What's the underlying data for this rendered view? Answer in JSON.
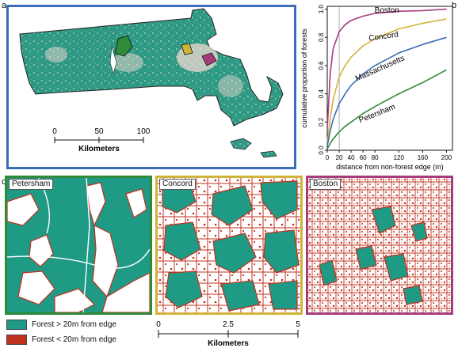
{
  "panels": {
    "a": {
      "letter": "a"
    },
    "b": {
      "letter": "b"
    },
    "c": {
      "letter": "c"
    }
  },
  "colors": {
    "forest_interior": "#1f9a85",
    "forest_edge": "#c0311d",
    "non_forest": "#ffffff",
    "frame_a": "#3a6db5",
    "frame_petersham": "#2f8a3a",
    "frame_concord": "#d0b43a",
    "frame_boston": "#a83a7e"
  },
  "massachusetts_map": {
    "scalebar": {
      "ticks": [
        "0",
        "50",
        "100"
      ],
      "unit": "Kilometers"
    }
  },
  "chart_data": {
    "type": "line",
    "xlabel": "distance from non-forest edge (m)",
    "ylabel": "cumulative proportion of forests",
    "xlim": [
      0,
      210
    ],
    "ylim": [
      0,
      1.02
    ],
    "x_ticks": [
      0,
      20,
      40,
      60,
      80,
      120,
      160,
      200
    ],
    "y_ticks": [
      0,
      0.2,
      0.4,
      0.6,
      0.8,
      1.0
    ],
    "reference_line_x": 20,
    "series": [
      {
        "name": "Boston",
        "color": "#a83a7e",
        "x": [
          0,
          5,
          10,
          20,
          30,
          40,
          60,
          80,
          120,
          160,
          200
        ],
        "y": [
          0.15,
          0.55,
          0.72,
          0.84,
          0.89,
          0.92,
          0.95,
          0.97,
          0.985,
          0.99,
          1.0
        ]
      },
      {
        "name": "Concord",
        "color": "#d0b43a",
        "x": [
          0,
          5,
          10,
          20,
          30,
          40,
          60,
          80,
          120,
          160,
          200
        ],
        "y": [
          0.05,
          0.23,
          0.36,
          0.52,
          0.6,
          0.66,
          0.74,
          0.79,
          0.86,
          0.9,
          0.93
        ]
      },
      {
        "name": "Massachusetts",
        "color": "#3a6db5",
        "x": [
          0,
          5,
          10,
          20,
          30,
          40,
          60,
          80,
          120,
          160,
          200
        ],
        "y": [
          0.03,
          0.14,
          0.22,
          0.33,
          0.4,
          0.46,
          0.54,
          0.6,
          0.69,
          0.75,
          0.8
        ]
      },
      {
        "name": "Petersham",
        "color": "#2f8a3a",
        "x": [
          0,
          5,
          10,
          20,
          30,
          40,
          60,
          80,
          120,
          160,
          200
        ],
        "y": [
          0.01,
          0.05,
          0.08,
          0.13,
          0.17,
          0.2,
          0.26,
          0.31,
          0.4,
          0.48,
          0.57
        ]
      }
    ]
  },
  "zoom_maps": [
    {
      "title": "Petersham"
    },
    {
      "title": "Concord"
    },
    {
      "title": "Boston"
    }
  ],
  "legend": [
    {
      "label": "Forest > 20m from edge"
    },
    {
      "label": "Forest < 20m from edge"
    }
  ],
  "bottom_scalebar": {
    "ticks": [
      "0",
      "2.5",
      "5"
    ],
    "unit": "Kilometers"
  }
}
